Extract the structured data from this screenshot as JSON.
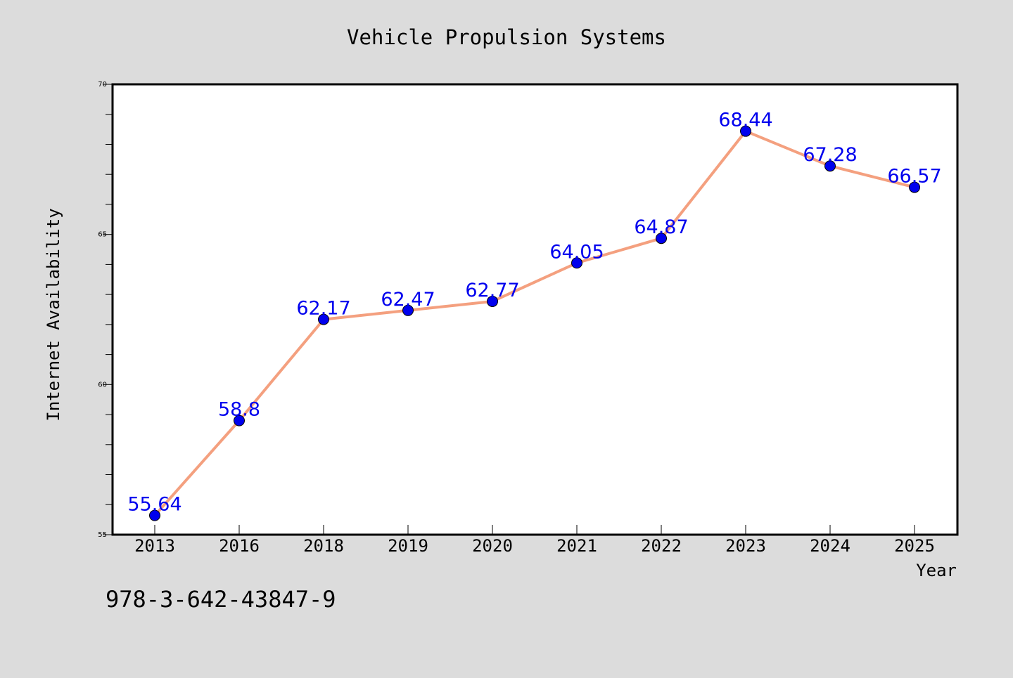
{
  "chart_data": {
    "type": "line",
    "title": "Vehicle Propulsion Systems",
    "xlabel": "Year",
    "ylabel": "Internet Availability",
    "categories": [
      "2013",
      "2016",
      "2018",
      "2019",
      "2020",
      "2021",
      "2022",
      "2023",
      "2024",
      "2025"
    ],
    "series": [
      {
        "values": [
          55.64,
          58.8,
          62.17,
          62.47,
          62.77,
          64.05,
          64.87,
          68.44,
          67.28,
          66.57
        ],
        "labels": [
          "55.64",
          "58.8",
          "62.17",
          "62.47",
          "62.77",
          "64.05",
          "64.87",
          "68.44",
          "67.28",
          "66.57"
        ],
        "line_color": "#f4a07f",
        "marker_color": "#0000ee"
      }
    ],
    "ylim": [
      55,
      70
    ],
    "yticks": [
      55,
      60,
      65,
      70
    ],
    "ytick_labels": [
      "55",
      "60",
      "65",
      "70"
    ],
    "label_color": "#0000ee",
    "grid": false,
    "legend": "none"
  },
  "footer": {
    "isbn": "978-3-642-43847-9"
  },
  "colors": {
    "background": "#dcdcdc",
    "plot_area": "#ffffff",
    "axis": "#000000"
  }
}
